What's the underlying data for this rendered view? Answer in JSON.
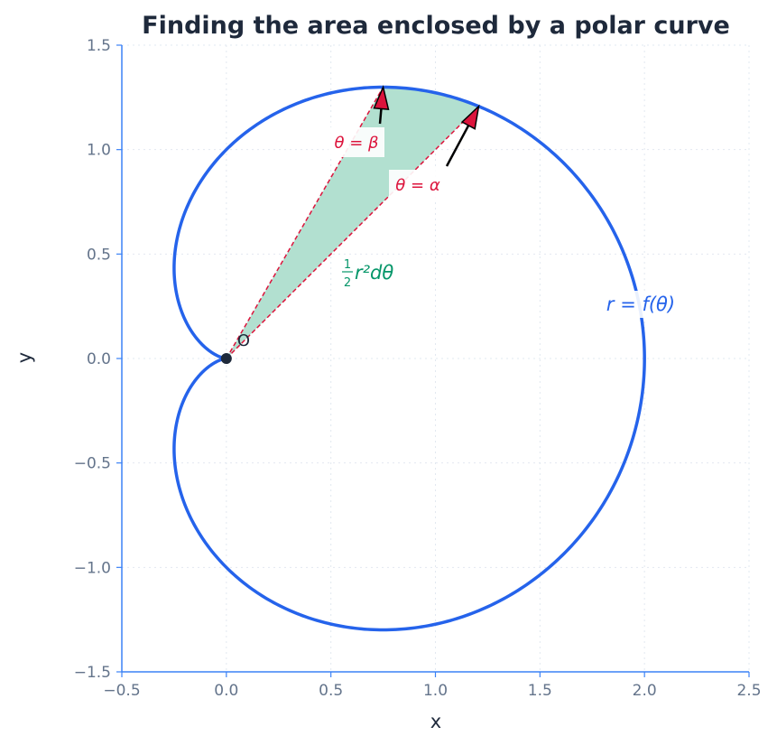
{
  "chart_data": {
    "type": "line",
    "title": "Finding the area enclosed by a polar curve",
    "xlabel": "x",
    "ylabel": "y",
    "xlim": [
      -0.5,
      2.5
    ],
    "ylim": [
      -1.5,
      1.5
    ],
    "xticks": [
      -0.5,
      0.0,
      0.5,
      1.0,
      1.5,
      2.0,
      2.5
    ],
    "yticks": [
      -1.5,
      -1.0,
      -0.5,
      0.0,
      0.5,
      1.0,
      1.5
    ],
    "xtick_labels": [
      "−0.5",
      "0.0",
      "0.5",
      "1.0",
      "1.5",
      "2.0",
      "2.5"
    ],
    "ytick_labels": [
      "−1.5",
      "−1.0",
      "−0.5",
      "0.0",
      "0.5",
      "1.0",
      "1.5"
    ],
    "grid": true,
    "curve": {
      "equation": "r = 1 + cos(theta)",
      "label": "r = f(θ)",
      "color": "#2563eb"
    },
    "sector": {
      "alpha": 0.7854,
      "beta": 1.0472,
      "fill_color": "#b2e0d0",
      "edge_color": "#dc143c"
    },
    "origin": {
      "x": 0,
      "y": 0,
      "label": "O"
    },
    "annotations": {
      "beta_label": "θ = β",
      "alpha_label": "θ = α",
      "element_label": "r²dθ",
      "element_frac_num": "1",
      "element_frac_den": "2"
    },
    "colors": {
      "axis": "#3b82f6",
      "tick_text": "#64748b",
      "grid": "#e2e8f0",
      "arrow_fill": "#dc143c"
    }
  }
}
